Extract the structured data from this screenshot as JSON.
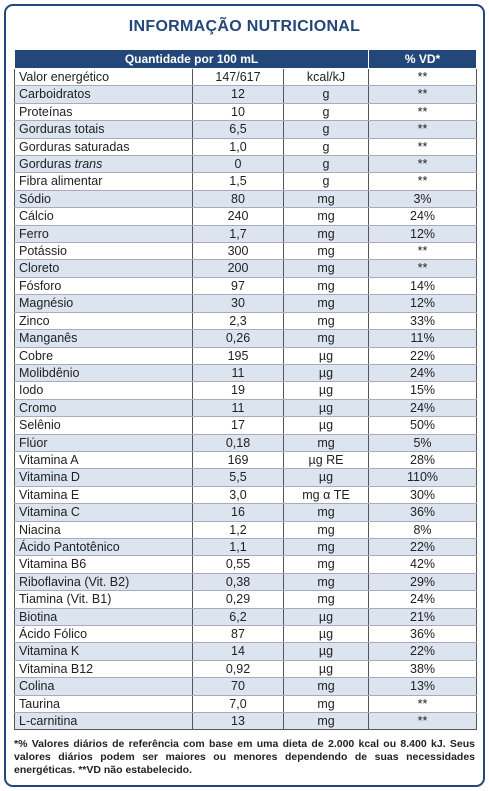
{
  "header": {
    "title": "INFORMAÇÃO NUTRICIONAL"
  },
  "table": {
    "columns": [
      "Quantidade por 100 mL",
      "% VD*"
    ],
    "rows": [
      {
        "name": "Valor energético",
        "amount": "147/617",
        "unit": "kcal/kJ",
        "vd": "**"
      },
      {
        "name": "Carboidratos",
        "amount": "12",
        "unit": "g",
        "vd": "**"
      },
      {
        "name": "Proteínas",
        "amount": "10",
        "unit": "g",
        "vd": "**"
      },
      {
        "name": "Gorduras totais",
        "amount": "6,5",
        "unit": "g",
        "vd": "**"
      },
      {
        "name": "Gorduras saturadas",
        "amount": "1,0",
        "unit": "g",
        "vd": "**"
      },
      {
        "name": "Gorduras",
        "name_italic": "trans",
        "amount": "0",
        "unit": "g",
        "vd": "**"
      },
      {
        "name": "Fibra alimentar",
        "amount": "1,5",
        "unit": "g",
        "vd": "**"
      },
      {
        "name": "Sódio",
        "amount": "80",
        "unit": "mg",
        "vd": "3%"
      },
      {
        "name": "Cálcio",
        "amount": "240",
        "unit": "mg",
        "vd": "24%"
      },
      {
        "name": "Ferro",
        "amount": "1,7",
        "unit": "mg",
        "vd": "12%"
      },
      {
        "name": "Potássio",
        "amount": "300",
        "unit": "mg",
        "vd": "**"
      },
      {
        "name": "Cloreto",
        "amount": "200",
        "unit": "mg",
        "vd": "**"
      },
      {
        "name": "Fósforo",
        "amount": "97",
        "unit": "mg",
        "vd": "14%"
      },
      {
        "name": "Magnésio",
        "amount": "30",
        "unit": "mg",
        "vd": "12%"
      },
      {
        "name": "Zinco",
        "amount": "2,3",
        "unit": "mg",
        "vd": "33%"
      },
      {
        "name": "Manganês",
        "amount": "0,26",
        "unit": "mg",
        "vd": "11%"
      },
      {
        "name": "Cobre",
        "amount": "195",
        "unit": "µg",
        "vd": "22%"
      },
      {
        "name": "Molibdênio",
        "amount": "11",
        "unit": "µg",
        "vd": "24%"
      },
      {
        "name": "Iodo",
        "amount": "19",
        "unit": "µg",
        "vd": "15%"
      },
      {
        "name": "Cromo",
        "amount": "11",
        "unit": "µg",
        "vd": "24%"
      },
      {
        "name": "Selênio",
        "amount": "17",
        "unit": "µg",
        "vd": "50%"
      },
      {
        "name": "Flúor",
        "amount": "0,18",
        "unit": "mg",
        "vd": "5%"
      },
      {
        "name": "Vitamina A",
        "amount": "169",
        "unit": "µg RE",
        "vd": "28%"
      },
      {
        "name": "Vitamina D",
        "amount": "5,5",
        "unit": "µg",
        "vd": "110%"
      },
      {
        "name": "Vitamina E",
        "amount": "3,0",
        "unit": "mg α TE",
        "vd": "30%"
      },
      {
        "name": "Vitamina C",
        "amount": "16",
        "unit": "mg",
        "vd": "36%"
      },
      {
        "name": "Niacina",
        "amount": "1,2",
        "unit": "mg",
        "vd": "8%"
      },
      {
        "name": "Ácido Pantotênico",
        "amount": "1,1",
        "unit": "mg",
        "vd": "22%"
      },
      {
        "name": "Vitamina B6",
        "amount": "0,55",
        "unit": "mg",
        "vd": "42%"
      },
      {
        "name": "Riboflavina (Vit. B2)",
        "amount": "0,38",
        "unit": "mg",
        "vd": "29%"
      },
      {
        "name": "Tiamina (Vit. B1)",
        "amount": "0,29",
        "unit": "mg",
        "vd": "24%"
      },
      {
        "name": "Biotina",
        "amount": "6,2",
        "unit": "µg",
        "vd": "21%"
      },
      {
        "name": "Ácido Fólico",
        "amount": "87",
        "unit": "µg",
        "vd": "36%"
      },
      {
        "name": "Vitamina K",
        "amount": "14",
        "unit": "µg",
        "vd": "22%"
      },
      {
        "name": "Vitamina B12",
        "amount": "0,92",
        "unit": "µg",
        "vd": "38%"
      },
      {
        "name": "Colina",
        "amount": "70",
        "unit": "mg",
        "vd": "13%"
      },
      {
        "name": "Taurina",
        "amount": "7,0",
        "unit": "mg",
        "vd": "**"
      },
      {
        "name": "L-carnitina",
        "amount": "13",
        "unit": "mg",
        "vd": "**"
      }
    ]
  },
  "footnote": "*% Valores diários de referência com base em uma dieta de 2.000 kcal ou 8.400 kJ. Seus valores diários podem ser maiores ou menores dependendo de suas necessidades energéticas. **VD não estabelecido."
}
